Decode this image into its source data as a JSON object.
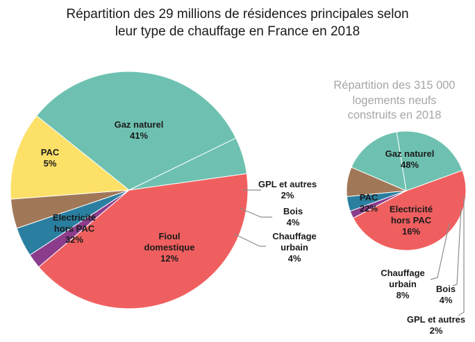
{
  "chart_data": [
    {
      "type": "pie",
      "title": "Répartition des 29 millions de résidences principales selon leur type de chauffage en France en 2018",
      "title_lines": [
        "Répartition des 29 millions de résidences principales selon",
        "leur type de chauffage en France en 2018"
      ],
      "slices": [
        {
          "label": "Gaz naturel",
          "label_lines": [
            "Gaz naturel"
          ],
          "value": 41,
          "value_label": "41%",
          "color": "#f05f5f"
        },
        {
          "label": "GPL et autres",
          "label_lines": [
            "GPL et autres"
          ],
          "value": 2,
          "value_label": "2%",
          "color": "#8b3d8b"
        },
        {
          "label": "Bois",
          "label_lines": [
            "Bois"
          ],
          "value": 4,
          "value_label": "4%",
          "color": "#2a7fa0"
        },
        {
          "label": "Chauffage urbain",
          "label_lines": [
            "Chauffage",
            "urbain"
          ],
          "value": 4,
          "value_label": "4%",
          "color": "#a07858"
        },
        {
          "label": "Fioul domestique",
          "label_lines": [
            "Fioul",
            "domestique"
          ],
          "value": 12,
          "value_label": "12%",
          "color": "#fde068"
        },
        {
          "label": "Electricité hors PAC",
          "label_lines": [
            "Electricité",
            "hors PAC"
          ],
          "value": 32,
          "value_label": "32%",
          "color": "#6ec1b0"
        },
        {
          "label": "PAC",
          "label_lines": [
            "PAC"
          ],
          "value": 5,
          "value_label": "5%",
          "color": "#6ec1b0"
        }
      ]
    },
    {
      "type": "pie",
      "title": "Répartition des 315 000 logements neufs construits en 2018",
      "title_lines": [
        "Répartition des 315 000",
        "logements neufs",
        "construits en 2018"
      ],
      "slices": [
        {
          "label": "Gaz naturel",
          "label_lines": [
            "Gaz naturel"
          ],
          "value": 48,
          "value_label": "48%",
          "color": "#f05f5f"
        },
        {
          "label": "GPL et autres",
          "label_lines": [
            "GPL et autres"
          ],
          "value": 2,
          "value_label": "2%",
          "color": "#8b3d8b"
        },
        {
          "label": "Bois",
          "label_lines": [
            "Bois"
          ],
          "value": 4,
          "value_label": "4%",
          "color": "#2a7fa0"
        },
        {
          "label": "Chauffage urbain",
          "label_lines": [
            "Chauffage",
            "urbain"
          ],
          "value": 8,
          "value_label": "8%",
          "color": "#a07858"
        },
        {
          "label": "Electricité hors PAC",
          "label_lines": [
            "Electricité",
            "hors PAC"
          ],
          "value": 16,
          "value_label": "16%",
          "color": "#6ec1b0"
        },
        {
          "label": "PAC",
          "label_lines": [
            "PAC"
          ],
          "value": 22,
          "value_label": "22%",
          "color": "#6ec1b0"
        }
      ]
    }
  ]
}
